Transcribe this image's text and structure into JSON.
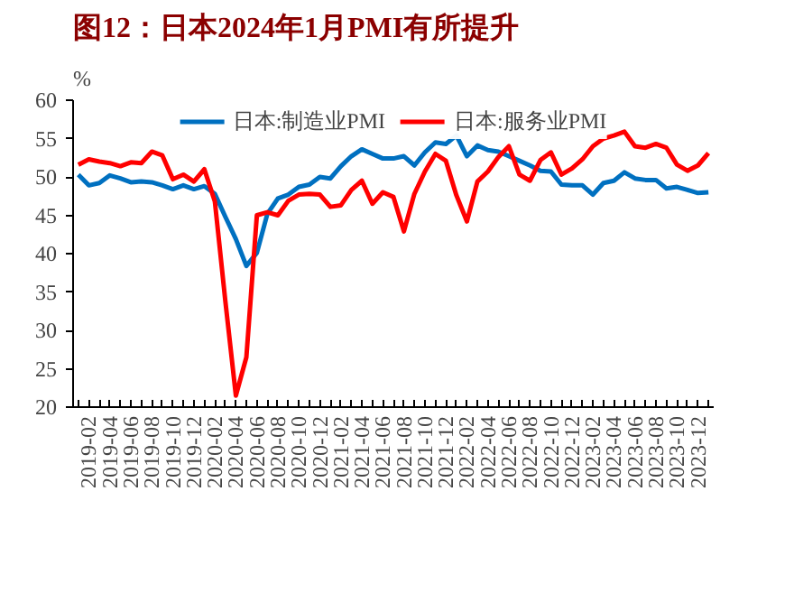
{
  "chart_data": {
    "type": "line",
    "title": "图12：日本2024年1月PMI有所提升",
    "ylabel": "%",
    "categories": [
      null,
      "2019-02",
      null,
      "2019-04",
      null,
      "2019-06",
      null,
      "2019-08",
      null,
      "2019-10",
      null,
      "2019-12",
      null,
      "2020-02",
      null,
      "2020-04",
      null,
      "2020-06",
      null,
      "2020-08",
      null,
      "2020-10",
      null,
      "2020-12",
      null,
      "2021-02",
      null,
      "2021-04",
      null,
      "2021-06",
      null,
      "2021-08",
      null,
      "2021-10",
      null,
      "2021-12",
      null,
      "2022-02",
      null,
      "2022-04",
      null,
      "2022-06",
      null,
      "2022-08",
      null,
      "2022-10",
      null,
      "2022-12",
      null,
      "2023-02",
      null,
      "2023-04",
      null,
      "2023-06",
      null,
      "2023-08",
      null,
      "2023-10",
      null,
      "2023-12",
      null
    ],
    "series": [
      {
        "name": "日本:制造业PMI",
        "color": "#0070c0",
        "values": [
          50.3,
          48.9,
          49.2,
          50.2,
          49.8,
          49.3,
          49.4,
          49.3,
          48.9,
          48.4,
          48.9,
          48.4,
          48.8,
          47.8,
          44.8,
          41.9,
          38.4,
          40.1,
          45.2,
          47.2,
          47.7,
          48.7,
          49.0,
          50.0,
          49.8,
          51.4,
          52.7,
          53.6,
          53.0,
          52.4,
          52.4,
          52.7,
          51.5,
          53.2,
          54.5,
          54.3,
          55.4,
          52.7,
          54.1,
          53.5,
          53.3,
          52.7,
          52.1,
          51.5,
          50.8,
          50.7,
          49.0,
          48.9,
          48.9,
          47.7,
          49.2,
          49.5,
          50.6,
          49.8,
          49.6,
          49.6,
          48.5,
          48.7,
          48.3,
          47.9,
          48.0
        ]
      },
      {
        "name": "日本:服务业PMI",
        "color": "#ff0000",
        "values": [
          51.6,
          52.3,
          52.0,
          51.8,
          51.4,
          51.9,
          51.8,
          53.3,
          52.8,
          49.7,
          50.3,
          49.4,
          51.0,
          46.8,
          33.8,
          21.5,
          26.5,
          45.0,
          45.4,
          45.0,
          46.9,
          47.7,
          47.8,
          47.7,
          46.1,
          46.3,
          48.3,
          49.5,
          46.5,
          48.0,
          47.4,
          42.9,
          47.8,
          50.7,
          53.0,
          52.1,
          47.6,
          44.2,
          49.4,
          50.7,
          52.6,
          54.0,
          50.3,
          49.5,
          52.2,
          53.2,
          50.3,
          51.1,
          52.3,
          54.0,
          55.0,
          55.4,
          55.9,
          54.0,
          53.8,
          54.3,
          53.8,
          51.6,
          50.8,
          51.5,
          53.1
        ]
      }
    ],
    "ylim": [
      20,
      60
    ],
    "yticks": [
      20,
      25,
      30,
      35,
      40,
      45,
      50,
      55,
      60
    ],
    "grid": false,
    "legend": "top",
    "marker": "none",
    "line_style": "solid"
  }
}
